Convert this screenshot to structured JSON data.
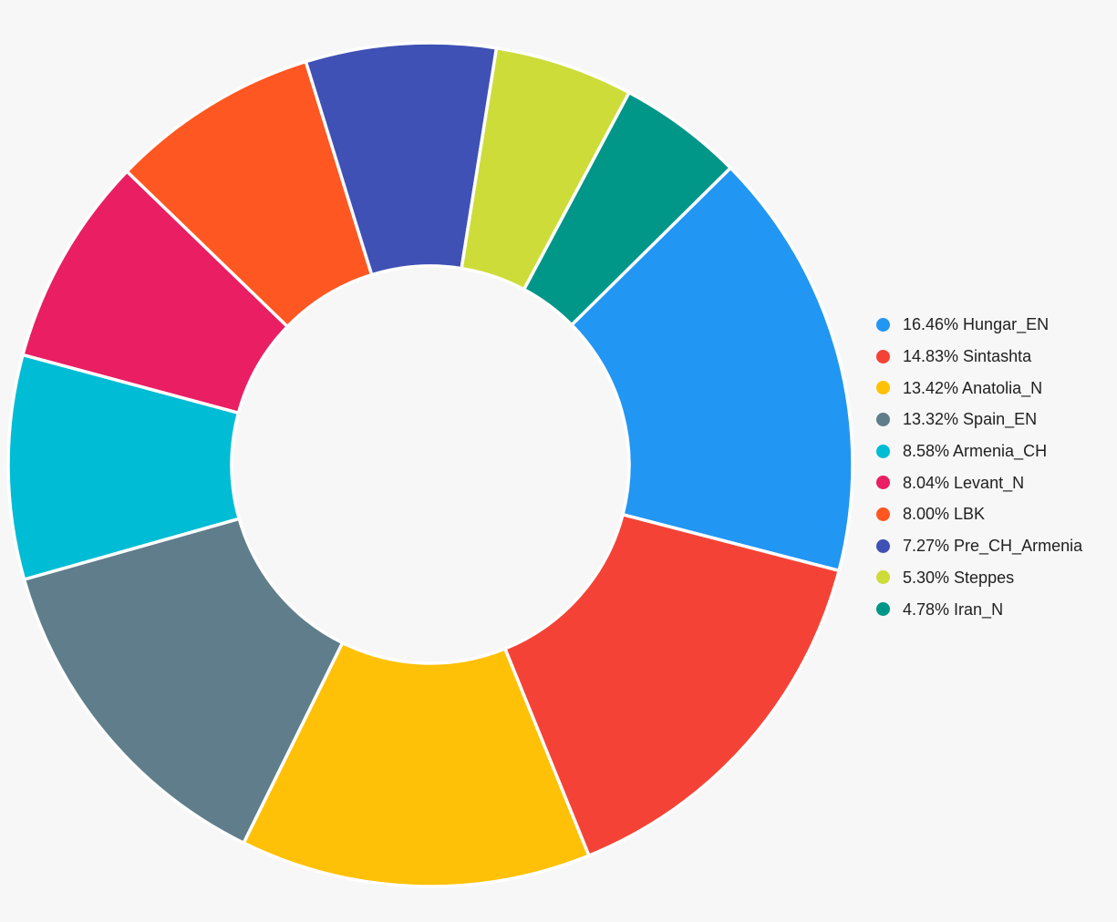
{
  "canvas": {
    "background": "#f7f7f7",
    "text_color": "#212121",
    "slice_border_color": "#ffffff"
  },
  "chart_data": {
    "type": "pie",
    "subtype": "donut",
    "title": "",
    "legend_position": "right",
    "start_angle_deg": 45.3,
    "clockwise": true,
    "inner_radius_ratio": 0.47,
    "slices": [
      {
        "name": "Hungar_EN",
        "percent": 16.46,
        "color": "#2196f3",
        "display": "16.46% Hungar_EN"
      },
      {
        "name": "Sintashta",
        "percent": 14.83,
        "color": "#f44336",
        "display": "14.83% Sintashta"
      },
      {
        "name": "Anatolia_N",
        "percent": 13.42,
        "color": "#ffc107",
        "display": "13.42% Anatolia_N"
      },
      {
        "name": "Spain_EN",
        "percent": 13.32,
        "color": "#607d8b",
        "display": "13.32% Spain_EN"
      },
      {
        "name": "Armenia_CH",
        "percent": 8.58,
        "color": "#00bcd4",
        "display": "8.58% Armenia_CH"
      },
      {
        "name": "Levant_N",
        "percent": 8.04,
        "color": "#e91e63",
        "display": "8.04% Levant_N"
      },
      {
        "name": "LBK",
        "percent": 8.0,
        "color": "#ff5722",
        "display": "8.00% LBK"
      },
      {
        "name": "Pre_CH_Armenia",
        "percent": 7.27,
        "color": "#3f51b5",
        "display": "7.27% Pre_CH_Armenia"
      },
      {
        "name": "Steppes",
        "percent": 5.3,
        "color": "#cddc39",
        "display": "5.30% Steppes"
      },
      {
        "name": "Iran_N",
        "percent": 4.78,
        "color": "#009688",
        "display": "4.78% Iran_N"
      }
    ]
  }
}
